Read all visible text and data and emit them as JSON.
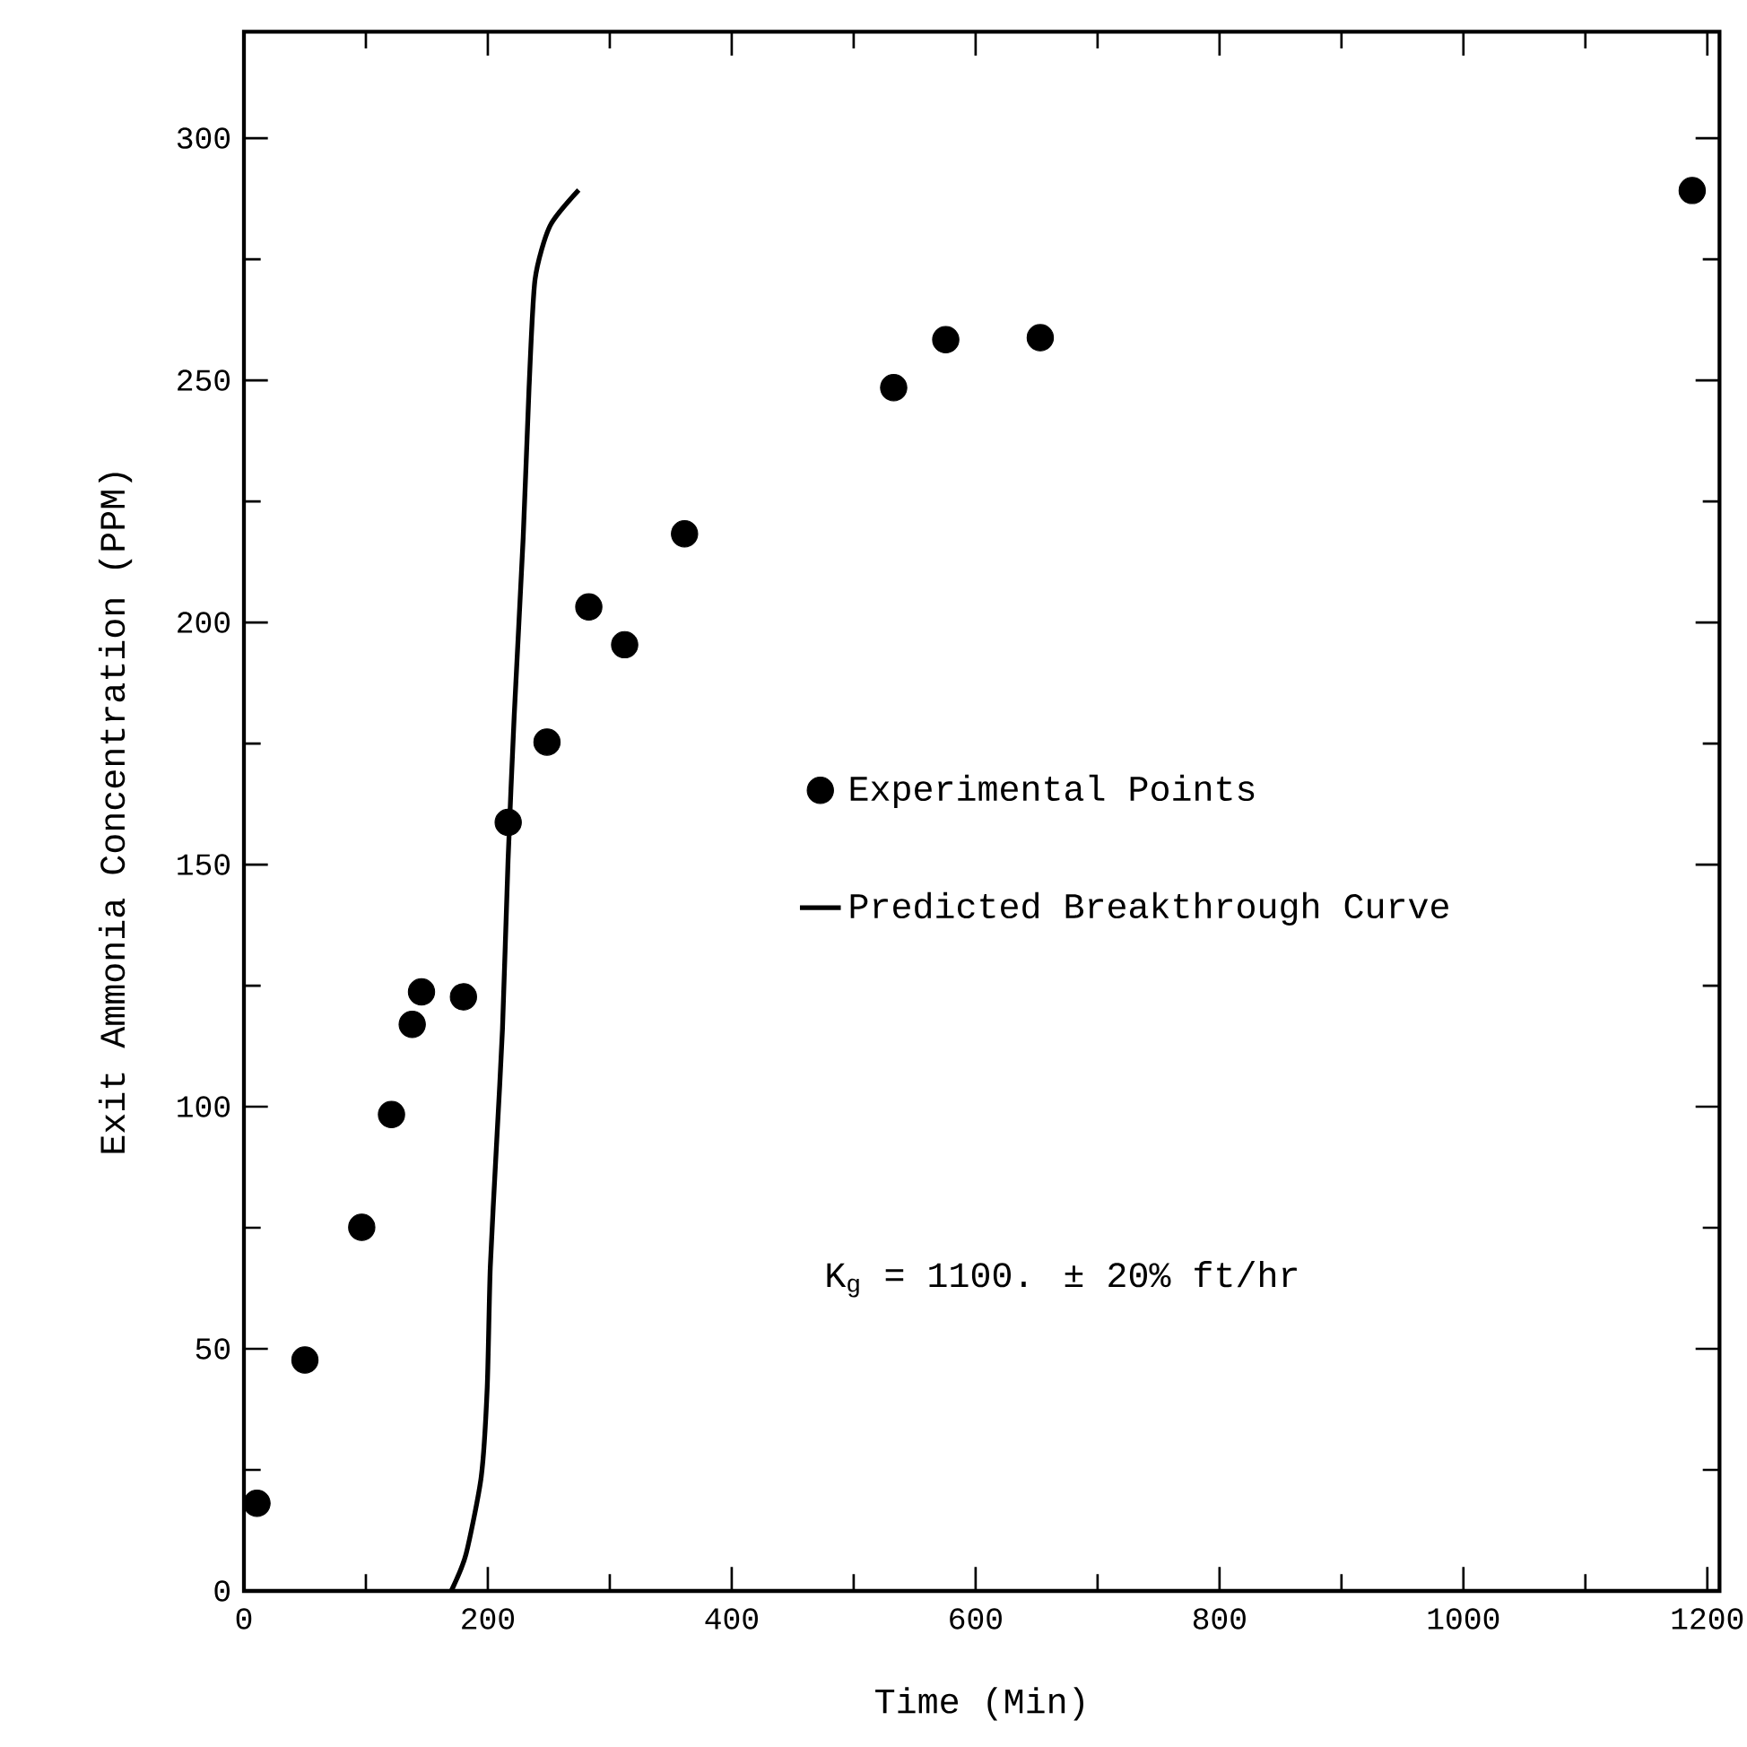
{
  "chart_data": {
    "type": "scatter",
    "xlabel": "Time (Min)",
    "ylabel": "Exit Ammonia Concentration (PPM)",
    "xlim": [
      0,
      1210
    ],
    "ylim": [
      0,
      322
    ],
    "xticks": [
      0,
      200,
      400,
      600,
      800,
      1000,
      1200
    ],
    "yticks": [
      0,
      50,
      100,
      150,
      200,
      250,
      300
    ],
    "grid": false,
    "legend": "right",
    "annotations": [
      "K$_{g}$ = 1100. ± 20% ft/hr"
    ],
    "series": [
      {
        "name": "Experimental Points",
        "color": "#000000",
        "marker": "circle",
        "x": [
          10.7,
          50,
          96.6,
          121,
          138,
          145.6,
          180,
          216.7,
          248.5,
          282.8,
          312.2,
          361.3,
          532.8,
          575.5,
          653,
          1187.6
        ],
        "values": [
          18.1,
          47.7,
          75.1,
          98.4,
          117,
          123.7,
          122.7,
          158.7,
          175.3,
          203.2,
          195.4,
          218.3,
          248.5,
          258.4,
          258.8,
          289.2
        ]
      },
      {
        "name": "Predicted Breakthrough Curve",
        "type": "line",
        "color": "#000000",
        "marker": "none",
        "line_style": "solid",
        "x": [
          170,
          182,
          194.6,
          199.5,
          202,
          207,
          212,
          216.6,
          221.6,
          229,
          233.8,
          238.7,
          251,
          274.5
        ],
        "values": [
          0,
          7.5,
          23.6,
          42,
          66.8,
          91.6,
          116,
          151,
          180.6,
          217.6,
          248.5,
          270.8,
          281.9,
          289.3
        ]
      }
    ]
  }
}
